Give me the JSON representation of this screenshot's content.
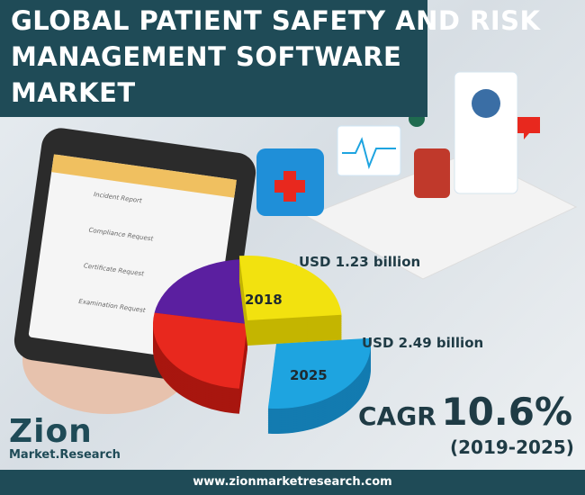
{
  "header": {
    "title": [
      "GLOBAL PATIENT SAFETY AND RISK",
      "MANAGEMENT SOFTWARE",
      "MARKET"
    ]
  },
  "phone": {
    "items": [
      "Incident Report",
      "Compliance Request",
      "Certificate Request",
      "Examination Request"
    ]
  },
  "pie": {
    "labels": [
      {
        "year": "2018",
        "value": "USD 1.23 billion"
      },
      {
        "year": "2025",
        "value": "USD 2.49 billion"
      }
    ]
  },
  "cagr": {
    "label": "CAGR",
    "value": "10.6%",
    "period": "(2019-2025)"
  },
  "logo": {
    "name": "Zion",
    "sub": "Market.Research"
  },
  "footer": {
    "url": "www.zionmarketresearch.com"
  }
}
